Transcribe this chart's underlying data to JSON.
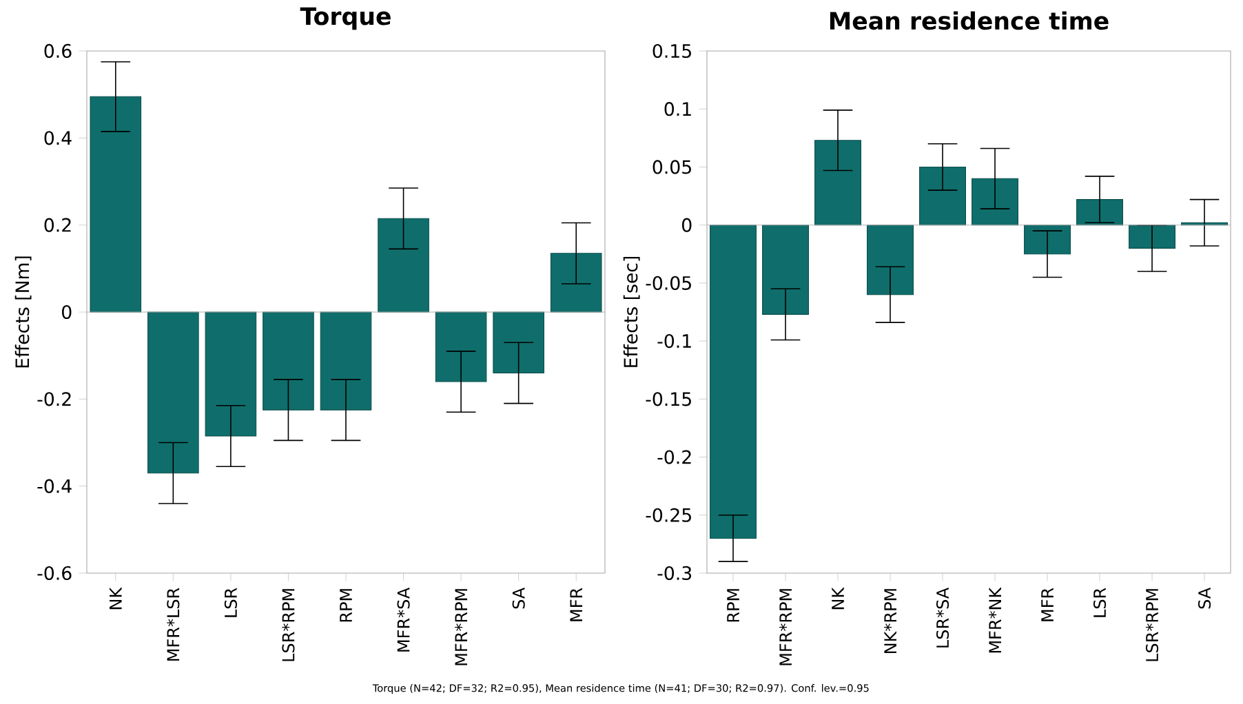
{
  "chart_data": [
    {
      "type": "bar",
      "title": "Torque",
      "ylabel": "Effects [Nm]",
      "categories": [
        "NK",
        "MFR*LSR",
        "LSR",
        "LSR*RPM",
        "RPM",
        "MFR*SA",
        "MFR*RPM",
        "SA",
        "MFR"
      ],
      "values": [
        0.495,
        -0.37,
        -0.285,
        -0.225,
        -0.225,
        0.215,
        -0.16,
        -0.14,
        0.135
      ],
      "errors": [
        0.08,
        0.07,
        0.07,
        0.07,
        0.07,
        0.07,
        0.07,
        0.07,
        0.07
      ],
      "color": "#0f6e6b",
      "ylim": [
        -0.6,
        0.6
      ],
      "yticks": [
        -0.6,
        -0.4,
        -0.2,
        0,
        0.2,
        0.4,
        0.6
      ],
      "annotations": [
        "Torque (N=42; DF=32; R2=0.95),  Mean residence time (N=41; DF=30; R2=0.97). Conf. lev.=0.95"
      ]
    },
    {
      "type": "bar",
      "title": "Mean residence time",
      "ylabel": "Effects [sec]",
      "categories": [
        "RPM",
        "MFR*RPM",
        "NK",
        "NK*RPM",
        "LSR*SA",
        "MFR*NK",
        "MFR",
        "LSR",
        "LSR*RPM",
        "SA"
      ],
      "values": [
        -0.27,
        -0.077,
        0.073,
        -0.06,
        0.05,
        0.04,
        -0.025,
        0.022,
        -0.02,
        0.002
      ],
      "errors": [
        0.02,
        0.022,
        0.026,
        0.024,
        0.02,
        0.026,
        0.02,
        0.02,
        0.02,
        0.02
      ],
      "color": "#0f6e6b",
      "ylim": [
        -0.3,
        0.15
      ],
      "yticks": [
        -0.3,
        -0.25,
        -0.2,
        -0.15,
        -0.1,
        -0.05,
        0,
        0.05,
        0.1,
        0.15
      ]
    }
  ]
}
